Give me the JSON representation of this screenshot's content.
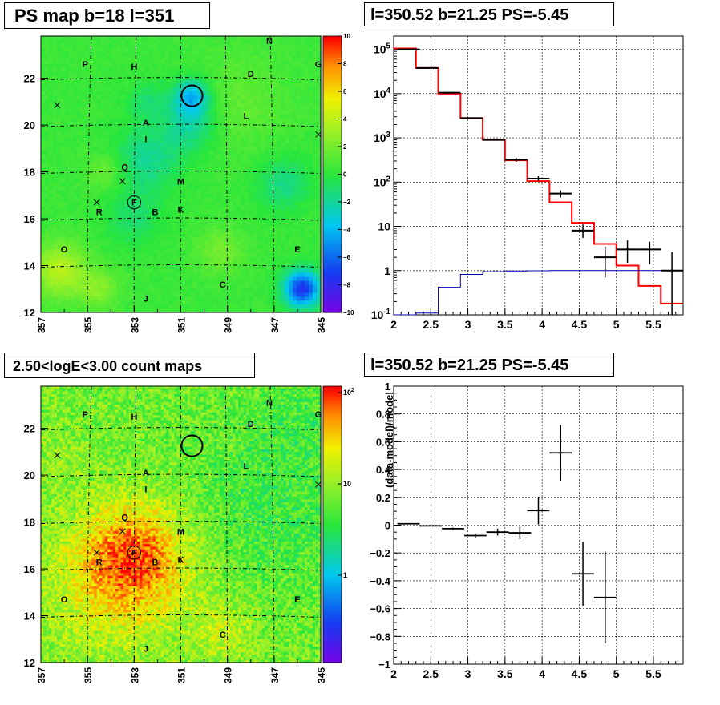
{
  "panels": {
    "ps_map": {
      "title": "PS map b=18 l=351"
    },
    "spectrum": {
      "title": "l=350.52 b=21.25 PS=-5.45"
    },
    "count_map": {
      "title": "2.50<logE<3.00 count maps"
    },
    "residual": {
      "title": "l=350.52 b=21.25 PS=-5.45"
    }
  },
  "chart_data": [
    {
      "type": "heatmap",
      "title": "PS map b=18 l=351",
      "x_ticks": [
        "357",
        "355",
        "353",
        "351",
        "349",
        "347",
        "345"
      ],
      "y_ticks": [
        "12",
        "14",
        "16",
        "18",
        "20",
        "22"
      ],
      "xlim": [
        357,
        345
      ],
      "ylim": [
        12,
        23.8
      ],
      "colorbar": {
        "min": -10,
        "max": 10,
        "ticks": [
          "10",
          "8",
          "6",
          "4",
          "2",
          "0",
          "−2",
          "−4",
          "−6",
          "−8",
          "−10"
        ]
      },
      "source_labels": [
        {
          "t": "N",
          "l": 347.2,
          "b": 23.6
        },
        {
          "t": "G",
          "l": 345.1,
          "b": 22.6
        },
        {
          "t": "P",
          "l": 355.1,
          "b": 22.6
        },
        {
          "t": "H",
          "l": 353.0,
          "b": 22.5
        },
        {
          "t": "D",
          "l": 348.0,
          "b": 22.2
        },
        {
          "t": "L",
          "l": 348.2,
          "b": 20.4
        },
        {
          "t": "A",
          "l": 352.5,
          "b": 20.1
        },
        {
          "t": "I",
          "l": 352.5,
          "b": 19.4
        },
        {
          "t": "Q",
          "l": 353.4,
          "b": 18.2
        },
        {
          "t": "M",
          "l": 351.0,
          "b": 17.6
        },
        {
          "t": "F",
          "l": 353.0,
          "b": 16.7
        },
        {
          "t": "K",
          "l": 351.0,
          "b": 16.4
        },
        {
          "t": "R",
          "l": 354.5,
          "b": 16.3
        },
        {
          "t": "B",
          "l": 352.1,
          "b": 16.3
        },
        {
          "t": "O",
          "l": 356.0,
          "b": 14.7
        },
        {
          "t": "E",
          "l": 346.0,
          "b": 14.7
        },
        {
          "t": "C",
          "l": 349.2,
          "b": 13.2
        },
        {
          "t": "J",
          "l": 352.5,
          "b": 12.6
        }
      ],
      "crosses": [
        {
          "l": 356.3,
          "b": 20.85
        },
        {
          "l": 354.6,
          "b": 16.7
        },
        {
          "l": 353.5,
          "b": 17.6
        },
        {
          "l": 345.1,
          "b": 19.6
        }
      ],
      "circles": [
        {
          "l": 350.52,
          "b": 21.25,
          "r": 0.45
        },
        {
          "l": 353.0,
          "b": 16.7,
          "r": 0.28
        }
      ]
    },
    {
      "type": "line",
      "title": "l=350.52 b=21.25 PS=-5.45",
      "x_ticks": [
        "2",
        "2.5",
        "3",
        "3.5",
        "4",
        "4.5",
        "5",
        "5.5"
      ],
      "y_ticks": [
        "10^-1",
        "1",
        "10",
        "10^2",
        "10^3",
        "10^4",
        "10^5"
      ],
      "xlim": [
        2,
        5.9
      ],
      "ylim": [
        0.1,
        200000
      ],
      "yscale": "log",
      "grid": true,
      "data_points": [
        {
          "x": 2.2,
          "y": 100000,
          "xerr": 0.15,
          "ylo": 100000,
          "yhi": 100000
        },
        {
          "x": 2.45,
          "y": 38000,
          "xerr": 0.15,
          "ylo": 38000,
          "yhi": 38000
        },
        {
          "x": 2.75,
          "y": 10500,
          "xerr": 0.15,
          "ylo": 10500,
          "yhi": 10500
        },
        {
          "x": 3.05,
          "y": 2800,
          "xerr": 0.15,
          "ylo": 2800,
          "yhi": 2800
        },
        {
          "x": 3.35,
          "y": 900,
          "xerr": 0.15,
          "ylo": 900,
          "yhi": 900
        },
        {
          "x": 3.65,
          "y": 320,
          "xerr": 0.15,
          "ylo": 290,
          "yhi": 350
        },
        {
          "x": 3.95,
          "y": 120,
          "xerr": 0.15,
          "ylo": 105,
          "yhi": 135
        },
        {
          "x": 4.25,
          "y": 55,
          "xerr": 0.15,
          "ylo": 45,
          "yhi": 65
        },
        {
          "x": 4.55,
          "y": 8,
          "xerr": 0.15,
          "ylo": 5.5,
          "yhi": 11
        },
        {
          "x": 4.85,
          "y": 2,
          "xerr": 0.15,
          "ylo": 0.7,
          "yhi": 3.5
        },
        {
          "x": 5.15,
          "y": 3,
          "xerr": 0.15,
          "ylo": 1.5,
          "yhi": 4.8
        },
        {
          "x": 5.45,
          "y": 3,
          "xerr": 0.15,
          "ylo": 1.4,
          "yhi": 4.5
        },
        {
          "x": 5.75,
          "y": 1,
          "xerr": 0.15,
          "ylo": 0.1,
          "yhi": 2.6
        }
      ],
      "series": [
        {
          "color": "#ff0000",
          "edges": [
            2,
            2.3,
            2.6,
            2.9,
            3.2,
            3.5,
            3.8,
            4.1,
            4.4,
            4.7,
            5.0,
            5.3,
            5.6,
            5.9
          ],
          "values": [
            105000,
            38000,
            10000,
            2800,
            900,
            310,
            105,
            35,
            12,
            4,
            1.3,
            0.45,
            0.18
          ]
        },
        {
          "color": "#0000aa",
          "edges": [
            2,
            2.3,
            2.6,
            2.9,
            3.2,
            3.5,
            3.8,
            4.1,
            4.4,
            4.7,
            5.0,
            5.3,
            5.6,
            5.9
          ],
          "values": [
            0.1,
            0.11,
            0.42,
            0.82,
            0.95,
            0.98,
            0.99,
            1,
            1,
            1,
            1,
            1,
            1
          ]
        }
      ]
    },
    {
      "type": "heatmap",
      "title": "2.50<logE<3.00 count maps",
      "x_ticks": [
        "357",
        "355",
        "353",
        "351",
        "349",
        "347",
        "345"
      ],
      "y_ticks": [
        "12",
        "14",
        "16",
        "18",
        "20",
        "22"
      ],
      "xlim": [
        357,
        345
      ],
      "ylim": [
        12,
        23.8
      ],
      "colorbar": {
        "scale": "log",
        "ticks": [
          "10^2",
          "10",
          "1"
        ]
      },
      "source_labels": [
        {
          "t": "N",
          "l": 347.2,
          "b": 23.1
        },
        {
          "t": "G",
          "l": 345.1,
          "b": 22.6
        },
        {
          "t": "P",
          "l": 355.1,
          "b": 22.6
        },
        {
          "t": "H",
          "l": 353.0,
          "b": 22.5
        },
        {
          "t": "D",
          "l": 348.0,
          "b": 22.2
        },
        {
          "t": "L",
          "l": 348.2,
          "b": 20.4
        },
        {
          "t": "A",
          "l": 352.5,
          "b": 20.1
        },
        {
          "t": "I",
          "l": 352.5,
          "b": 19.4
        },
        {
          "t": "Q",
          "l": 353.4,
          "b": 18.2
        },
        {
          "t": "M",
          "l": 351.0,
          "b": 17.6
        },
        {
          "t": "F",
          "l": 353.0,
          "b": 16.7
        },
        {
          "t": "K",
          "l": 351.0,
          "b": 16.4
        },
        {
          "t": "R",
          "l": 354.5,
          "b": 16.3
        },
        {
          "t": "B",
          "l": 352.1,
          "b": 16.3
        },
        {
          "t": "O",
          "l": 356.0,
          "b": 14.7
        },
        {
          "t": "E",
          "l": 346.0,
          "b": 14.7
        },
        {
          "t": "C",
          "l": 349.2,
          "b": 13.2
        },
        {
          "t": "J",
          "l": 352.5,
          "b": 12.6
        }
      ],
      "crosses": [
        {
          "l": 356.3,
          "b": 20.85
        },
        {
          "l": 354.6,
          "b": 16.7
        },
        {
          "l": 353.5,
          "b": 17.6
        },
        {
          "l": 345.1,
          "b": 19.6
        }
      ],
      "circles": [
        {
          "l": 350.52,
          "b": 21.25,
          "r": 0.45
        },
        {
          "l": 353.0,
          "b": 16.7,
          "r": 0.28
        }
      ]
    },
    {
      "type": "scatter",
      "title": "l=350.52 b=21.25 PS=-5.45",
      "ylabel": "(data-model)/model",
      "x_ticks": [
        "2",
        "2.5",
        "3",
        "3.5",
        "4",
        "4.5",
        "5",
        "5.5"
      ],
      "y_ticks": [
        "−1",
        "−0.8",
        "−0.6",
        "−0.4",
        "−0.2",
        "0",
        "0.2",
        "0.4",
        "0.6",
        "0.8",
        "1"
      ],
      "xlim": [
        2,
        5.9
      ],
      "ylim": [
        -1,
        1
      ],
      "grid": true,
      "data_points": [
        {
          "x": 2.2,
          "y": 0.01,
          "xerr": 0.15,
          "yerr": 0.005
        },
        {
          "x": 2.5,
          "y": -0.005,
          "xerr": 0.15,
          "yerr": 0.005
        },
        {
          "x": 2.8,
          "y": -0.025,
          "xerr": 0.15,
          "yerr": 0.008
        },
        {
          "x": 3.1,
          "y": -0.075,
          "xerr": 0.15,
          "yerr": 0.015
        },
        {
          "x": 3.4,
          "y": -0.05,
          "xerr": 0.15,
          "yerr": 0.025
        },
        {
          "x": 3.7,
          "y": -0.055,
          "xerr": 0.15,
          "yerr": 0.045
        },
        {
          "x": 3.95,
          "y": 0.105,
          "xerr": 0.15,
          "yerr": 0.1
        },
        {
          "x": 4.25,
          "y": 0.52,
          "xerr": 0.15,
          "yerr": 0.2
        },
        {
          "x": 4.55,
          "y": -0.35,
          "xerr": 0.15,
          "yerr": 0.23
        },
        {
          "x": 4.85,
          "y": -0.52,
          "xerr": 0.15,
          "yerr": 0.33
        }
      ]
    }
  ]
}
